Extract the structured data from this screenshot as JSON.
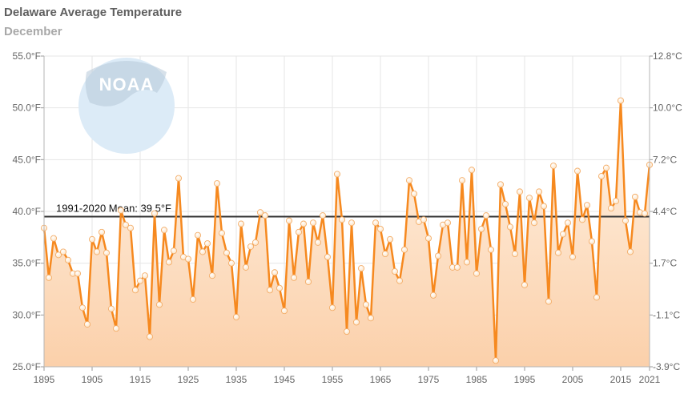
{
  "header": {
    "title": "Delaware Average Temperature",
    "subtitle": "December"
  },
  "logo": {
    "text": "NOAA",
    "icon": "noaa-logo"
  },
  "colors": {
    "series": "#f6891f",
    "point_fill": "#fde3c4",
    "area_top": "#fff3e6",
    "area_bottom": "#fbd0aa",
    "mean_line": "#333333",
    "grid": "#e6e6e6",
    "logo": "#dcebf7"
  },
  "chart_data": {
    "type": "line",
    "title": "Delaware Average Temperature",
    "subtitle": "December",
    "x_start": 1895,
    "x_end": 2021,
    "x_ticks": [
      1895,
      1905,
      1915,
      1925,
      1935,
      1945,
      1955,
      1965,
      1975,
      1985,
      1995,
      2005,
      2015,
      2021
    ],
    "x_tick_labels": [
      "1895",
      "1905",
      "1915",
      "1925",
      "1935",
      "1945",
      "1955",
      "1965",
      "1975",
      "1985",
      "1995",
      "2005",
      "2015",
      "2021"
    ],
    "y_ticks": [
      25,
      30,
      35,
      40,
      45,
      50,
      55
    ],
    "y_tick_labels": [
      "25.0°F",
      "30.0°F",
      "35.0°F",
      "40.0°F",
      "45.0°F",
      "50.0°F",
      "55.0°F"
    ],
    "y2_tick_labels": [
      "-3.9°C",
      "-1.1°C",
      "1.7°C",
      "4.4°C",
      "7.2°C",
      "10.0°C",
      "12.8°C"
    ],
    "ylim": [
      25,
      55
    ],
    "grid": true,
    "legend": "none",
    "mean": {
      "value": 39.5,
      "label": "1991-2020 Mean: 39.5°F"
    },
    "series": [
      {
        "values": [
          38.4,
          33.6,
          37.4,
          35.8,
          36.1,
          35.3,
          34.0,
          34.0,
          30.7,
          29.1,
          37.3,
          36.1,
          38.0,
          36.0,
          30.6,
          28.7,
          40.1,
          38.7,
          38.4,
          32.4,
          33.3,
          33.8,
          27.9,
          39.8,
          31.0,
          38.2,
          35.1,
          36.2,
          43.2,
          35.6,
          35.4,
          31.5,
          37.7,
          36.1,
          36.9,
          33.8,
          42.7,
          37.9,
          36.0,
          35.0,
          29.8,
          38.8,
          34.6,
          36.6,
          37.0,
          39.9,
          39.6,
          32.4,
          34.1,
          32.6,
          30.4,
          39.1,
          33.6,
          38.0,
          38.8,
          33.2,
          38.9,
          37.0,
          39.6,
          35.6,
          30.7,
          43.6,
          39.2,
          28.4,
          38.9,
          29.3,
          34.5,
          31.0,
          29.7,
          38.9,
          38.3,
          35.9,
          37.3,
          34.2,
          33.3,
          36.3,
          43.0,
          41.7,
          39.0,
          39.2,
          37.4,
          31.9,
          35.7,
          38.7,
          38.9,
          34.6,
          34.6,
          43.0,
          35.1,
          44.0,
          34.0,
          38.3,
          39.6,
          36.3,
          25.6,
          42.6,
          40.7,
          38.5,
          35.9,
          41.9,
          32.9,
          41.3,
          38.9,
          41.9,
          40.5,
          31.3,
          44.4,
          36.0,
          37.8,
          38.9,
          35.6,
          43.9,
          39.2,
          40.6,
          37.1,
          31.7,
          43.4,
          44.2,
          40.3,
          41.0,
          50.7,
          39.1,
          36.1,
          41.4,
          39.9,
          39.8,
          44.5
        ]
      }
    ]
  }
}
